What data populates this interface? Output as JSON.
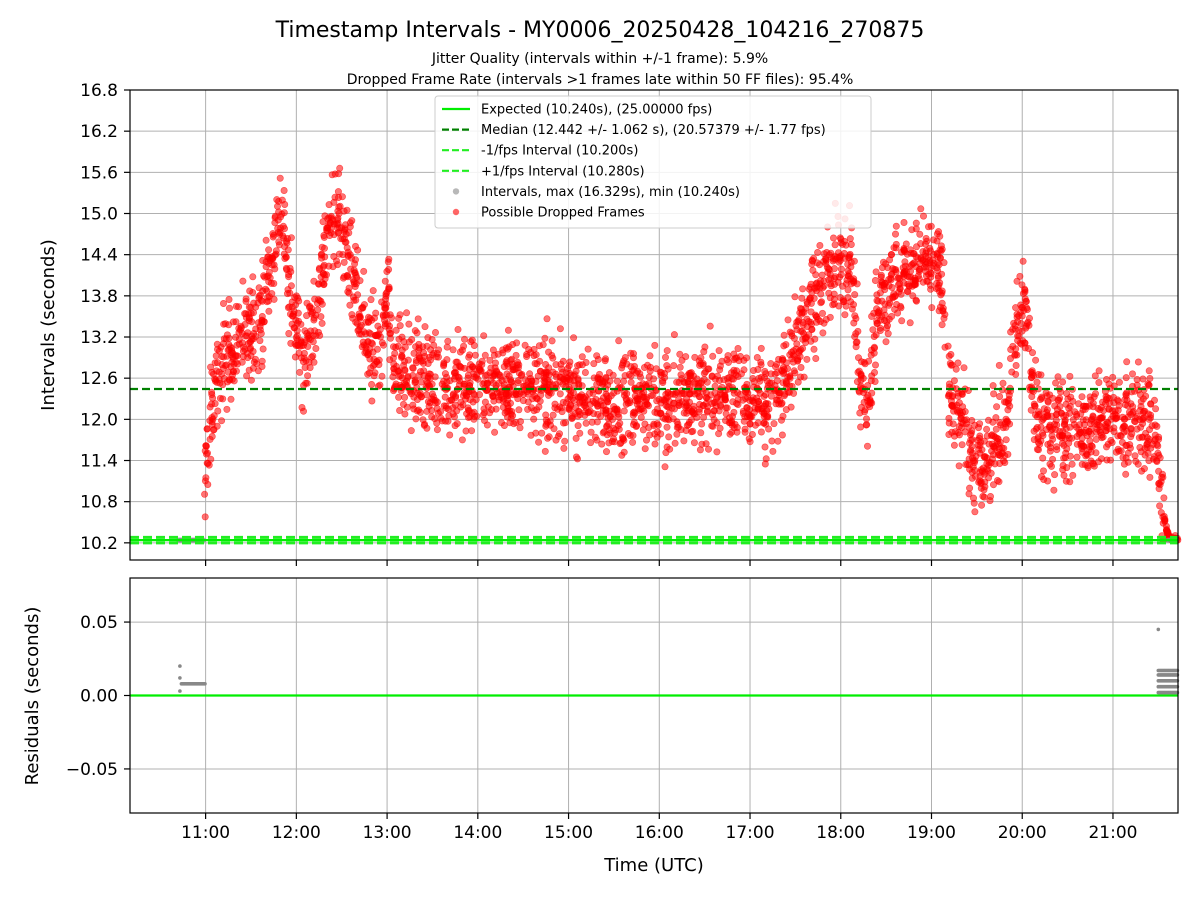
{
  "title": "Timestamp Intervals - MY0006_20250428_104216_270875",
  "subtitle_lines": [
    "Jitter Quality (intervals within +/-1 frame): 5.9%",
    "Dropped Frame Rate (intervals >1 frames late within 50 FF files): 95.4%"
  ],
  "colors": {
    "expected": "#00ee00",
    "median": "#008000",
    "fps_bounds": "#22ee22",
    "intervals": "#888888",
    "dropped": "#ff0000",
    "grid": "#b0b0b0"
  },
  "chart_data": [
    {
      "panel": "top",
      "type": "scatter",
      "ylabel": "Intervals (seconds)",
      "xlabel": "",
      "ylim": [
        9.95,
        16.8
      ],
      "y_ticks": [
        "10.2",
        "10.8",
        "11.4",
        "12.0",
        "12.6",
        "13.2",
        "13.8",
        "14.4",
        "15.0",
        "15.6",
        "16.2",
        "16.8"
      ],
      "x_ticks": [
        "11:00",
        "12:00",
        "13:00",
        "14:00",
        "15:00",
        "16:00",
        "17:00",
        "18:00",
        "19:00",
        "20:00",
        "21:00"
      ],
      "xlim": [
        "10:10",
        "21:43"
      ],
      "grid": true,
      "legend_position": "top-center",
      "legend": [
        {
          "label": "Expected (10.240s), (25.00000 fps)",
          "style": "solid-line",
          "color": "#00ee00"
        },
        {
          "label": "Median (12.442 +/- 1.062 s), (20.57379 +/- 1.77 fps)",
          "style": "dashed-line",
          "color": "#008000"
        },
        {
          "label": "-1/fps Interval (10.200s)",
          "style": "dashed-line",
          "color": "#22ee22"
        },
        {
          "label": "+1/fps Interval (10.280s)",
          "style": "dashed-line",
          "color": "#22ee22"
        },
        {
          "label": "Intervals, max (16.329s), min (10.240s)",
          "style": "marker",
          "color": "#888888"
        },
        {
          "label": "Possible Dropped Frames",
          "style": "marker",
          "color": "#ff0000"
        }
      ],
      "reference_lines": {
        "expected": 10.24,
        "median": 12.442,
        "minus_1fps": 10.2,
        "plus_1fps": 10.28
      },
      "dropped_frames_trend": [
        {
          "t": "10:59",
          "y": 10.9
        },
        {
          "t": "11:02",
          "y": 11.8
        },
        {
          "t": "11:06",
          "y": 12.3
        },
        {
          "t": "11:12",
          "y": 12.9
        },
        {
          "t": "11:20",
          "y": 13.1
        },
        {
          "t": "11:30",
          "y": 13.3
        },
        {
          "t": "11:38",
          "y": 13.6
        },
        {
          "t": "11:45",
          "y": 14.5
        },
        {
          "t": "11:50",
          "y": 15.2
        },
        {
          "t": "11:55",
          "y": 14.0
        },
        {
          "t": "12:00",
          "y": 13.2
        },
        {
          "t": "12:05",
          "y": 13.0
        },
        {
          "t": "12:12",
          "y": 13.4
        },
        {
          "t": "12:20",
          "y": 14.6
        },
        {
          "t": "12:28",
          "y": 15.0
        },
        {
          "t": "12:35",
          "y": 14.2
        },
        {
          "t": "12:42",
          "y": 13.5
        },
        {
          "t": "12:48",
          "y": 13.0
        },
        {
          "t": "12:55",
          "y": 13.0
        },
        {
          "t": "13:00",
          "y": 13.9
        },
        {
          "t": "13:05",
          "y": 12.8
        },
        {
          "t": "13:20",
          "y": 12.6
        },
        {
          "t": "13:40",
          "y": 12.5
        },
        {
          "t": "14:00",
          "y": 12.55
        },
        {
          "t": "14:20",
          "y": 12.5
        },
        {
          "t": "14:40",
          "y": 12.5
        },
        {
          "t": "15:00",
          "y": 12.3
        },
        {
          "t": "15:20",
          "y": 12.3
        },
        {
          "t": "15:40",
          "y": 12.3
        },
        {
          "t": "16:00",
          "y": 12.2
        },
        {
          "t": "16:20",
          "y": 12.3
        },
        {
          "t": "16:40",
          "y": 12.4
        },
        {
          "t": "17:00",
          "y": 12.3
        },
        {
          "t": "17:15",
          "y": 12.2
        },
        {
          "t": "17:30",
          "y": 13.0
        },
        {
          "t": "17:40",
          "y": 13.7
        },
        {
          "t": "17:50",
          "y": 14.0
        },
        {
          "t": "18:00",
          "y": 14.3
        },
        {
          "t": "18:08",
          "y": 14.2
        },
        {
          "t": "18:12",
          "y": 12.5
        },
        {
          "t": "18:18",
          "y": 12.2
        },
        {
          "t": "18:25",
          "y": 13.8
        },
        {
          "t": "18:35",
          "y": 14.0
        },
        {
          "t": "18:45",
          "y": 14.2
        },
        {
          "t": "18:55",
          "y": 14.3
        },
        {
          "t": "19:05",
          "y": 14.3
        },
        {
          "t": "19:12",
          "y": 12.4
        },
        {
          "t": "19:20",
          "y": 12.0
        },
        {
          "t": "19:28",
          "y": 11.4
        },
        {
          "t": "19:35",
          "y": 11.3
        },
        {
          "t": "19:42",
          "y": 11.6
        },
        {
          "t": "19:50",
          "y": 12.0
        },
        {
          "t": "19:57",
          "y": 13.5
        },
        {
          "t": "20:03",
          "y": 13.6
        },
        {
          "t": "20:08",
          "y": 12.2
        },
        {
          "t": "20:15",
          "y": 11.9
        },
        {
          "t": "20:25",
          "y": 11.9
        },
        {
          "t": "20:35",
          "y": 11.8
        },
        {
          "t": "20:45",
          "y": 11.9
        },
        {
          "t": "20:55",
          "y": 12.0
        },
        {
          "t": "21:05",
          "y": 12.0
        },
        {
          "t": "21:15",
          "y": 12.0
        },
        {
          "t": "21:22",
          "y": 11.9
        },
        {
          "t": "21:28",
          "y": 11.9
        },
        {
          "t": "21:32",
          "y": 10.9
        },
        {
          "t": "21:35",
          "y": 10.4
        },
        {
          "t": "21:38",
          "y": 10.25
        },
        {
          "t": "21:43",
          "y": 10.24
        }
      ],
      "dropped_frames_spread": 0.35,
      "on_time_intervals": [
        {
          "t_start": "10:42",
          "t_end": "10:59",
          "y": 10.24
        },
        {
          "t_start": "21:36",
          "t_end": "21:43",
          "y": 10.24
        }
      ]
    },
    {
      "panel": "bottom",
      "type": "scatter",
      "ylabel": "Residuals (seconds)",
      "xlabel": "Time (UTC)",
      "ylim": [
        -0.08,
        0.08
      ],
      "y_ticks": [
        "0.05",
        "0.00",
        "−0.05"
      ],
      "x_ticks": [
        "11:00",
        "12:00",
        "13:00",
        "14:00",
        "15:00",
        "16:00",
        "17:00",
        "18:00",
        "19:00",
        "20:00",
        "21:00"
      ],
      "grid": true,
      "zero_line": 0.0,
      "residual_points": [
        {
          "t": "10:43",
          "y": 0.02
        },
        {
          "t": "10:43",
          "y": 0.003
        },
        {
          "t": "10:43",
          "y": 0.012
        },
        {
          "t_start": "10:44",
          "t_end": "11:00",
          "y": 0.008
        },
        {
          "t": "21:30",
          "y": 0.045
        },
        {
          "t_start": "21:30",
          "t_end": "21:43",
          "y_values": [
            0.002,
            0.006,
            0.01,
            0.014,
            0.017
          ]
        }
      ]
    }
  ]
}
